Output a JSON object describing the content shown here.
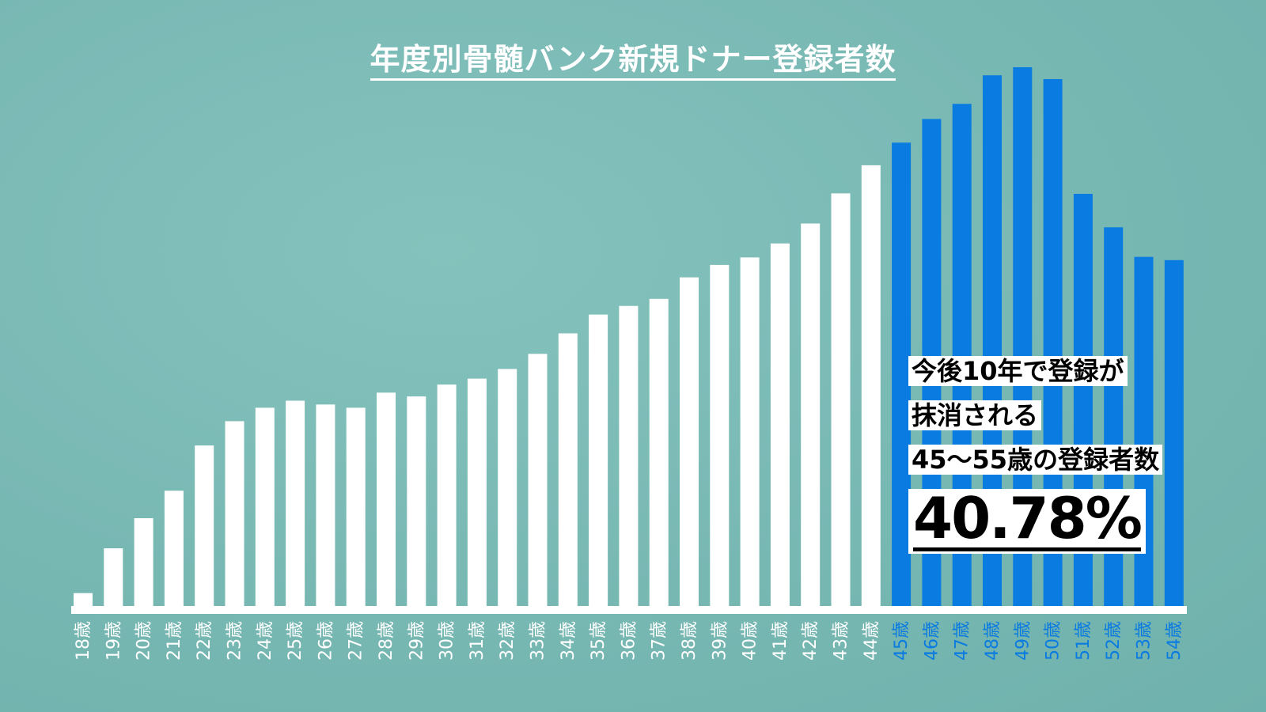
{
  "title": "年度別骨髄バンク新規ドナー登録者数",
  "callout": {
    "line1": "今後10年で登録が",
    "line2": "抹消される",
    "line3": "45～55歳の登録者数",
    "percent": "40.78%"
  },
  "colors": {
    "background": "#7dbcb7",
    "bar_default": "#ffffff",
    "bar_highlight": "#0a7be0",
    "label_default": "#ffffff",
    "label_highlight": "#0a7be0"
  },
  "chart_data": {
    "type": "bar",
    "title": "年度別骨髄バンク新規ドナー登録者数",
    "xlabel": "",
    "ylabel": "",
    "grid": false,
    "legend": "none",
    "ylim": [
      0,
      100
    ],
    "categories": [
      "18歳",
      "19歳",
      "20歳",
      "21歳",
      "22歳",
      "23歳",
      "24歳",
      "25歳",
      "26歳",
      "27歳",
      "28歳",
      "29歳",
      "30歳",
      "31歳",
      "32歳",
      "33歳",
      "34歳",
      "35歳",
      "36歳",
      "37歳",
      "38歳",
      "39歳",
      "40歳",
      "41歳",
      "42歳",
      "43歳",
      "44歳",
      "45歳",
      "46歳",
      "47歳",
      "48歳",
      "49歳",
      "50歳",
      "51歳",
      "52歳",
      "53歳",
      "54歳"
    ],
    "values": [
      2.4,
      10.7,
      16.3,
      21.4,
      29.8,
      34.3,
      36.8,
      38.1,
      37.4,
      36.8,
      39.6,
      38.9,
      41.1,
      42.2,
      44.0,
      46.8,
      50.6,
      54.1,
      55.7,
      57.0,
      61.0,
      63.3,
      64.7,
      67.3,
      71.0,
      76.6,
      81.8,
      86.0,
      90.4,
      93.2,
      98.5,
      100,
      97.8,
      76.5,
      70.3,
      64.8,
      64.2
    ],
    "highlight_from_index": 27
  }
}
